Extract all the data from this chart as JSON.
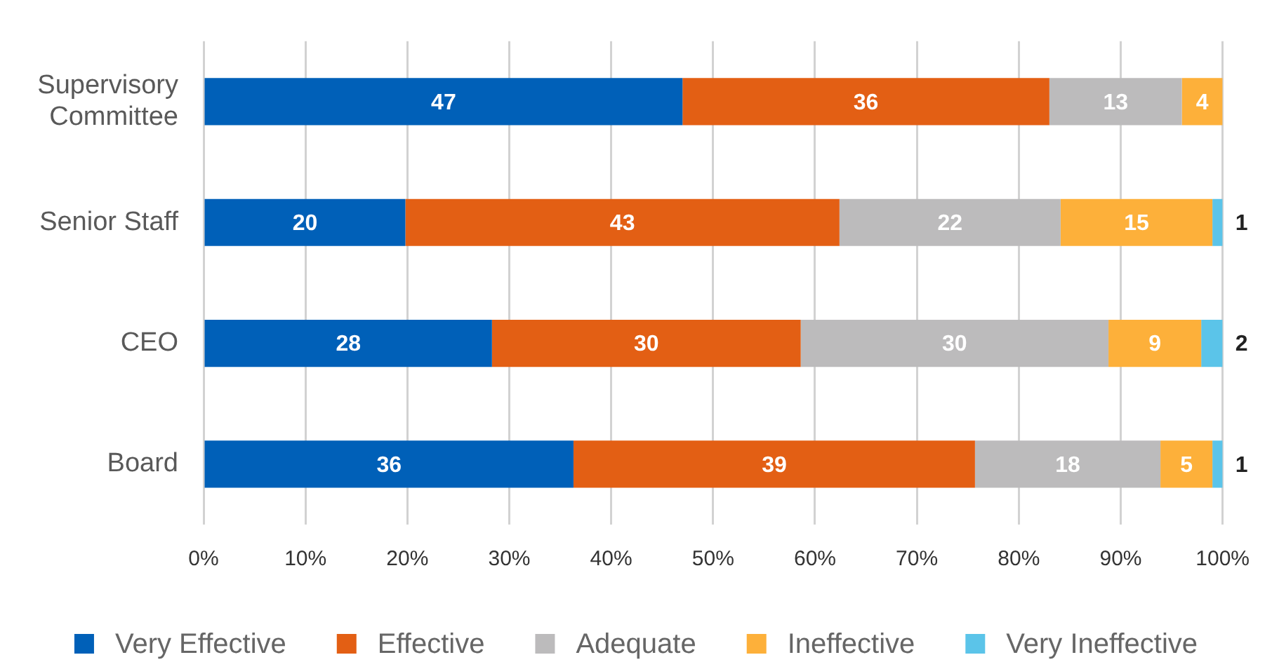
{
  "chart_data": {
    "type": "bar",
    "orientation": "horizontal",
    "stacked": true,
    "categories": [
      "Supervisory Committee",
      "Senior Staff",
      "CEO",
      "Board"
    ],
    "series": [
      {
        "name": "Very Effective",
        "color": "#0060b8",
        "values": [
          47,
          19.8,
          28.3,
          36.3
        ],
        "value_labels": [
          "47",
          "20",
          "28",
          "36"
        ]
      },
      {
        "name": "Effective",
        "color": "#e35f14",
        "values": [
          36,
          42.6,
          30.3,
          39.4
        ],
        "value_labels": [
          "36",
          "43",
          "30",
          "39"
        ]
      },
      {
        "name": "Adequate",
        "color": "#bcbbbc",
        "values": [
          13,
          21.7,
          30.2,
          18.2
        ],
        "value_labels": [
          "13",
          "22",
          "30",
          "18"
        ]
      },
      {
        "name": "Ineffective",
        "color": "#fdb03a",
        "values": [
          4,
          14.9,
          9.1,
          5.1
        ],
        "value_labels": [
          "4",
          "15",
          "9",
          "5"
        ]
      },
      {
        "name": "Very Ineffective",
        "color": "#5bc4e9",
        "values": [
          null,
          1.0,
          2.1,
          1.0
        ],
        "value_labels": [
          null,
          "1",
          "2",
          "1"
        ]
      }
    ],
    "xlim": [
      0,
      100
    ],
    "xticks": [
      {
        "value": 0,
        "label": "0%"
      },
      {
        "value": 10,
        "label": "10%"
      },
      {
        "value": 20,
        "label": "20%"
      },
      {
        "value": 30,
        "label": "30%"
      },
      {
        "value": 40,
        "label": "40%"
      },
      {
        "value": 50,
        "label": "50%"
      },
      {
        "value": 60,
        "label": "60%"
      },
      {
        "value": 70,
        "label": "70%"
      },
      {
        "value": 80,
        "label": "80%"
      },
      {
        "value": 90,
        "label": "90%"
      },
      {
        "value": 100,
        "label": "100%"
      }
    ],
    "grid": "x",
    "legend": "bottom"
  }
}
